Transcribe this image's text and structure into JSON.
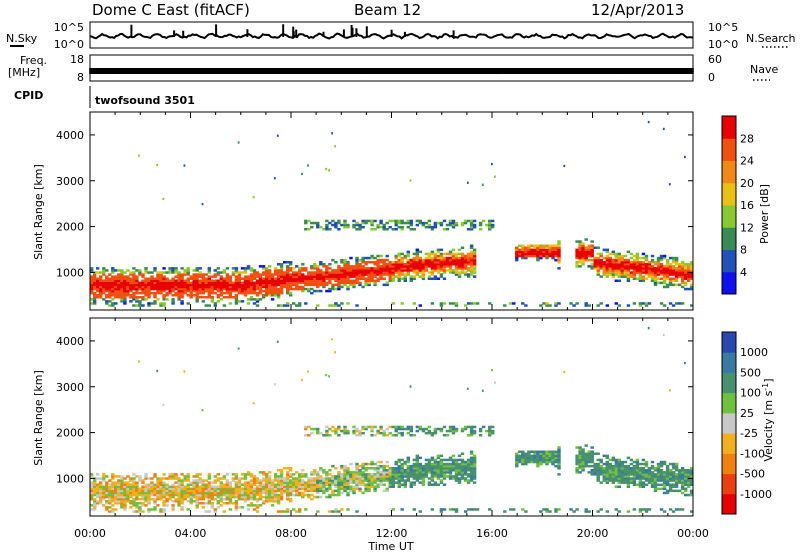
{
  "header": {
    "station": "Dome C East (fitACF)",
    "beam": "Beam 12",
    "date": "12/Apr/2013"
  },
  "status_panels": {
    "nsky_label": "N.Sky",
    "nsearch_label": "N.Search",
    "noise_ticks_left": [
      "10^5",
      "10^0"
    ],
    "noise_ticks_right": [
      "10^5",
      "10^0"
    ],
    "freq_label": "Freq.",
    "freq_unit": "[MHz]",
    "freq_ticks": [
      "18",
      "8"
    ],
    "nave_label": "Nave",
    "nave_ticks": [
      "60",
      "0"
    ],
    "cpid_label": "CPID",
    "cpid_value": "twofsound 3501"
  },
  "chart_data": [
    {
      "type": "heatmap",
      "name": "power",
      "ylabel": "Slant Range [km]",
      "ylim": [
        180,
        4500
      ],
      "yticks": [
        1000,
        2000,
        3000,
        4000
      ],
      "xlim": [
        "00:00",
        "24:00"
      ],
      "colorbar": {
        "label": "Power [dB]",
        "ticks": [
          4,
          8,
          12,
          16,
          20,
          24,
          28
        ],
        "colors": [
          "#1010ee",
          "#2050b8",
          "#3a8a55",
          "#88c830",
          "#e8c018",
          "#f08818",
          "#f05010",
          "#e80000"
        ]
      }
    },
    {
      "type": "heatmap",
      "name": "velocity",
      "ylabel": "Slant Range [km]",
      "ylim": [
        180,
        4500
      ],
      "yticks": [
        1000,
        2000,
        3000,
        4000
      ],
      "xlim": [
        "00:00",
        "24:00"
      ],
      "colorbar": {
        "label": "Velocity [m s-1]",
        "ticks": [
          1000,
          500,
          100,
          25,
          -25,
          -100,
          -500,
          -1000
        ],
        "colors": [
          "#2848b0",
          "#3a7aa0",
          "#48906e",
          "#70c040",
          "#c8c8c8",
          "#f0b020",
          "#f08010",
          "#e84010",
          "#e80000"
        ]
      }
    }
  ],
  "x_axis": {
    "ticks": [
      "00:00",
      "04:00",
      "08:00",
      "12:00",
      "16:00",
      "20:00",
      "00:00"
    ],
    "label": "Time UT"
  }
}
